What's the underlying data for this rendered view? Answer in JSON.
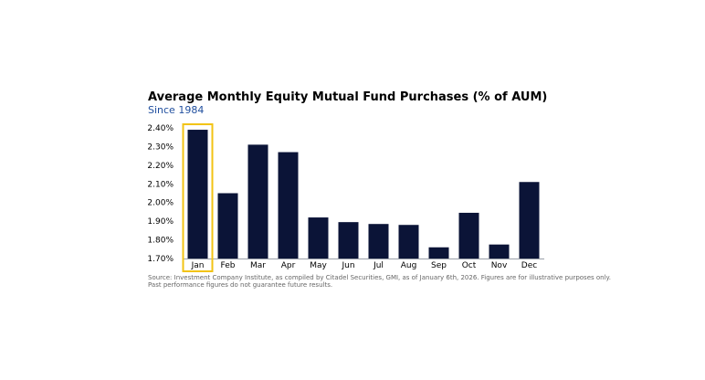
{
  "chart_data": {
    "type": "bar",
    "title": "Average Monthly Equity Mutual Fund Purchases (% of AUM)",
    "subtitle": "Since 1984",
    "categories": [
      "Jan",
      "Feb",
      "Mar",
      "Apr",
      "May",
      "Jun",
      "Jul",
      "Aug",
      "Sep",
      "Oct",
      "Nov",
      "Dec"
    ],
    "values": [
      2.39,
      2.05,
      2.31,
      2.27,
      1.92,
      1.895,
      1.885,
      1.88,
      1.76,
      1.945,
      1.775,
      2.11
    ],
    "yticks": [
      "1.70%",
      "1.80%",
      "1.90%",
      "2.00%",
      "2.10%",
      "2.20%",
      "2.30%",
      "2.40%"
    ],
    "ylim": [
      1.7,
      2.4
    ],
    "xlabel": "",
    "ylabel": "",
    "highlight_category": "Jan",
    "colors": {
      "bar": "#0b1437",
      "highlight": "#f2c314",
      "subtitle": "#1f4e9e"
    }
  },
  "footnote": {
    "line1": "Source: Investment Company Institute, as compiled by Citadel Securities, GMI, as of January 6th, 2026. Figures are for illustrative purposes only.",
    "line2": "Past performance figures do not guarantee future results."
  }
}
